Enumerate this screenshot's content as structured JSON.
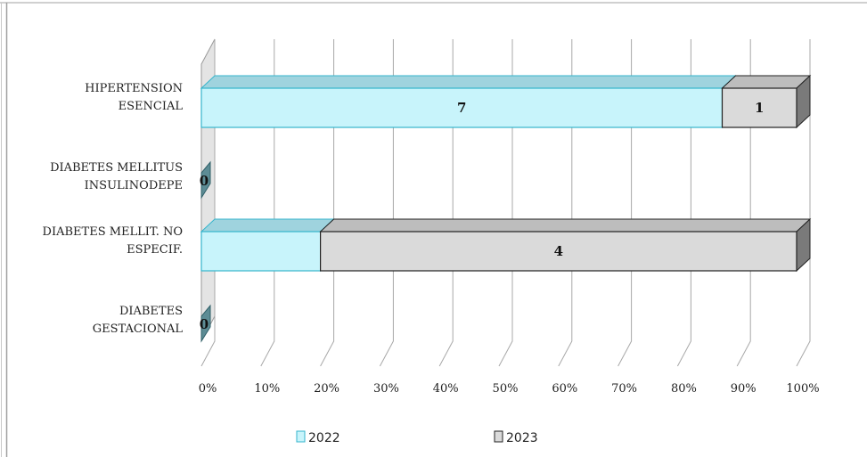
{
  "chart_data": {
    "type": "bar",
    "orientation": "horizontal",
    "stacked": "percent",
    "three_d": true,
    "categories": [
      [
        "HIPERTENSION",
        "ESENCIAL"
      ],
      [
        "DIABETES MELLITUS",
        "INSULINODEPE"
      ],
      [
        "DIABETES MELLIT. NO",
        "ESPECIF."
      ],
      [
        "DIABETES",
        "GESTACIONAL"
      ]
    ],
    "series": [
      {
        "name": "2022",
        "values": [
          7,
          0,
          1,
          0
        ],
        "labels": [
          "7",
          "0",
          "",
          "0"
        ],
        "color": "#c8f4fb",
        "edge": "#35b5cc"
      },
      {
        "name": "2023",
        "values": [
          1,
          0,
          4,
          0
        ],
        "labels": [
          "1",
          "",
          "4",
          ""
        ],
        "color": "#dadada",
        "edge": "#222222"
      }
    ],
    "x_ticks": [
      "0%",
      "10%",
      "20%",
      "30%",
      "40%",
      "50%",
      "60%",
      "70%",
      "80%",
      "90%",
      "100%"
    ],
    "xlim": [
      0,
      100
    ],
    "grid": true,
    "legend_position": "bottom"
  }
}
